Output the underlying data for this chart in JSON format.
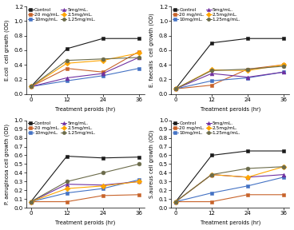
{
  "x": [
    0,
    12,
    24,
    36
  ],
  "ecoli": {
    "ylabel": "E.coli  cell growth (OD)",
    "ylim": [
      0.0,
      1.2
    ],
    "yticks": [
      0.0,
      0.2,
      0.4,
      0.6,
      0.8,
      1.0,
      1.2
    ],
    "control": [
      0.1,
      0.62,
      0.76,
      0.76
    ],
    "t1_20": [
      0.1,
      0.35,
      0.3,
      0.58
    ],
    "t2_10": [
      0.1,
      0.18,
      0.25,
      0.35
    ],
    "t3_5": [
      0.1,
      0.22,
      0.28,
      0.5
    ],
    "t4_2p5": [
      0.1,
      0.42,
      0.46,
      0.56
    ],
    "t5_1p25": [
      0.1,
      0.46,
      0.48,
      0.5
    ]
  },
  "efaecalis": {
    "ylabel": "E. faecalis  cell growth (OD)",
    "ylim": [
      0.0,
      1.2
    ],
    "yticks": [
      0.0,
      0.2,
      0.4,
      0.6,
      0.8,
      1.0,
      1.2
    ],
    "control": [
      0.07,
      0.7,
      0.76,
      0.76
    ],
    "t1_20": [
      0.07,
      0.12,
      0.34,
      0.4
    ],
    "t2_10": [
      0.07,
      0.18,
      0.22,
      0.3
    ],
    "t3_5": [
      0.07,
      0.28,
      0.23,
      0.3
    ],
    "t4_2p5": [
      0.07,
      0.33,
      0.32,
      0.4
    ],
    "t5_1p25": [
      0.07,
      0.32,
      0.34,
      0.38
    ]
  },
  "paeruginosa": {
    "ylabel": "P. aeruginosa cell growth (OD)",
    "ylim": [
      0.0,
      1.0
    ],
    "yticks": [
      0.0,
      0.1,
      0.2,
      0.3,
      0.4,
      0.5,
      0.6,
      0.7,
      0.8,
      0.9,
      1.0
    ],
    "control": [
      0.07,
      0.59,
      0.57,
      0.58
    ],
    "t1_20": [
      0.07,
      0.07,
      0.14,
      0.15
    ],
    "t2_10": [
      0.07,
      0.17,
      0.22,
      0.32
    ],
    "t3_5": [
      0.07,
      0.27,
      0.26,
      0.3
    ],
    "t4_2p5": [
      0.07,
      0.22,
      0.25,
      0.3
    ],
    "t5_1p25": [
      0.07,
      0.3,
      0.4,
      0.5
    ]
  },
  "saureus": {
    "ylabel": "S.aureus cell growth (OD)",
    "ylim": [
      0.0,
      1.0
    ],
    "yticks": [
      0.0,
      0.1,
      0.2,
      0.3,
      0.4,
      0.5,
      0.6,
      0.7,
      0.8,
      0.9,
      1.0
    ],
    "control": [
      0.07,
      0.6,
      0.65,
      0.65
    ],
    "t1_20": [
      0.07,
      0.07,
      0.15,
      0.15
    ],
    "t2_10": [
      0.07,
      0.17,
      0.25,
      0.35
    ],
    "t3_5": [
      0.07,
      0.38,
      0.35,
      0.38
    ],
    "t4_2p5": [
      0.07,
      0.38,
      0.35,
      0.47
    ],
    "t5_1p25": [
      0.07,
      0.38,
      0.45,
      0.47
    ]
  },
  "colors": {
    "control": "#1a1a1a",
    "t1_20": "#c8632a",
    "t2_10": "#4472c4",
    "t3_5": "#7030a0",
    "t4_2p5": "#ffa500",
    "t5_1p25": "#6b6b4a"
  },
  "markers": {
    "control": "s",
    "t1_20": "s",
    "t2_10": "s",
    "t3_5": "^",
    "t4_2p5": "D",
    "t5_1p25": "o"
  },
  "legend_labels": [
    "Control",
    "20 mg/mL.",
    "10mg/mL.",
    "5mg/mL.",
    "2.5mg/mL.",
    "1.25mg/mL."
  ],
  "xlabel": "Treatment peroids (hr)",
  "xticks": [
    0,
    12,
    24,
    36
  ],
  "markersize": 3.5,
  "linewidth": 0.8,
  "fontsize_axis": 5.0,
  "fontsize_label": 4.8,
  "fontsize_legend": 4.2
}
